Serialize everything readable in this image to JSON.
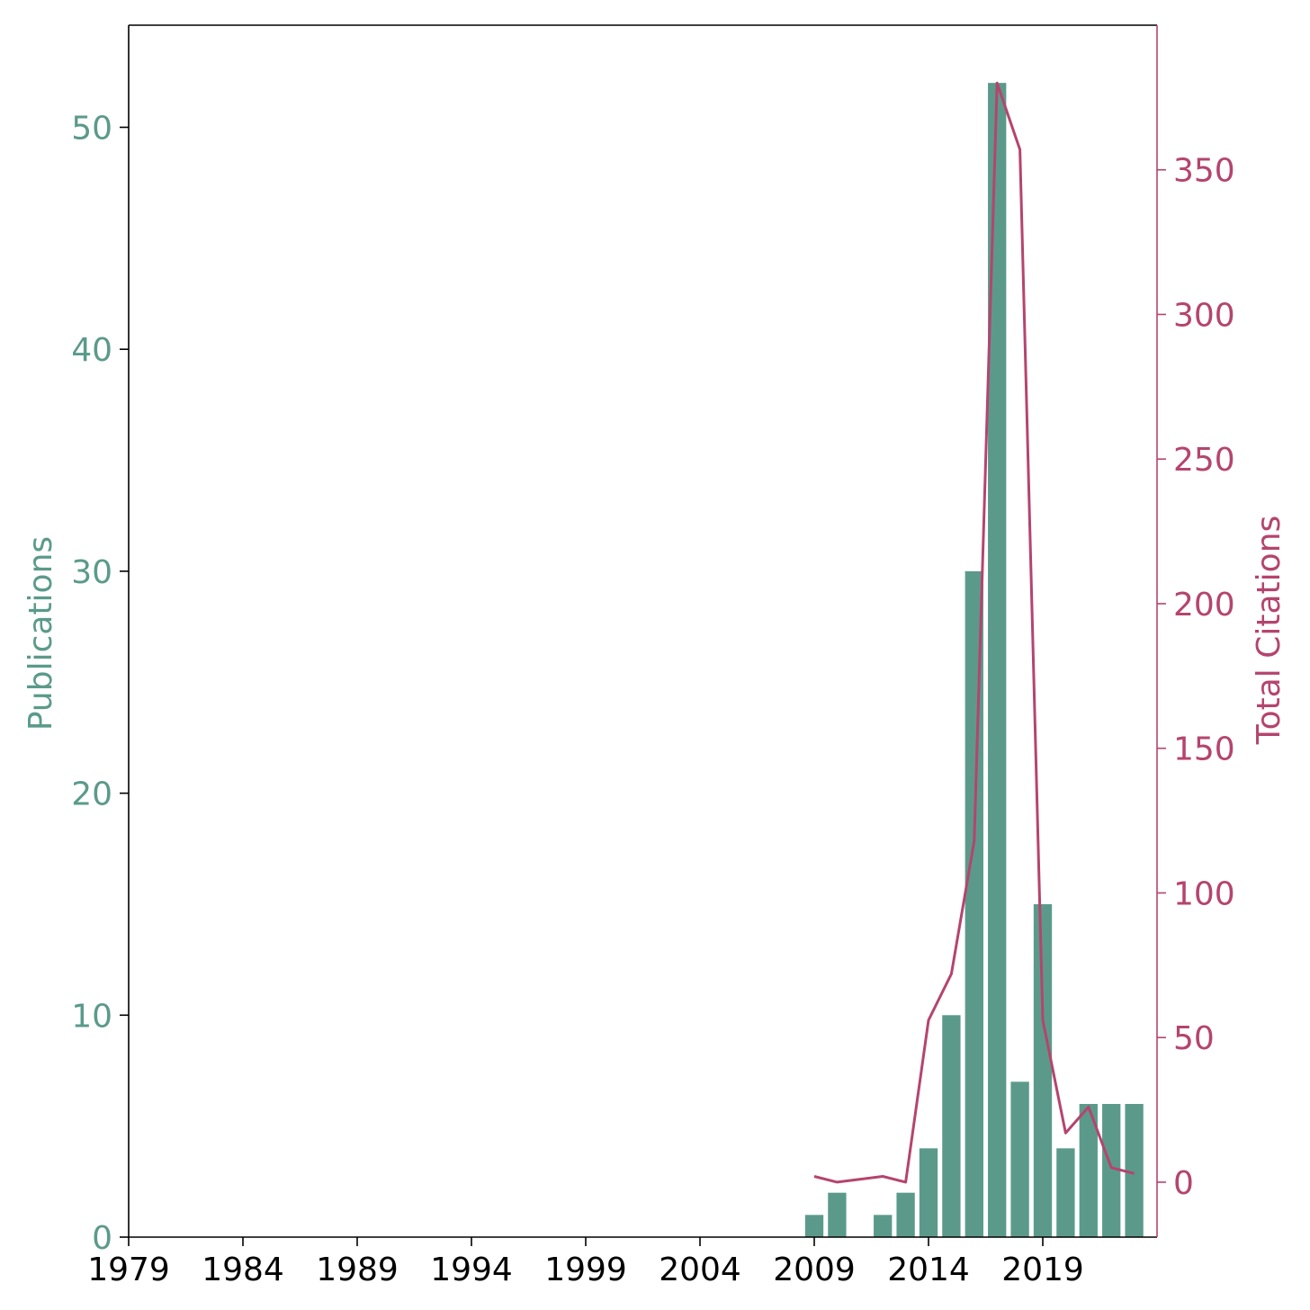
{
  "chart_data": {
    "type": "bar+line",
    "title": "",
    "xlabel": "",
    "x_ticks": [
      "1979",
      "1984",
      "1989",
      "1994",
      "1999",
      "2004",
      "2009",
      "2014",
      "2019"
    ],
    "xlim": [
      1979,
      2024
    ],
    "colors": {
      "publications": "#5b9a8b",
      "citations": "#b5446e",
      "axis": "#000000"
    },
    "series": [
      {
        "name": "Publications",
        "type": "bar",
        "axis": "left",
        "x": [
          2009,
          2010,
          2012,
          2013,
          2014,
          2015,
          2016,
          2017,
          2018,
          2019,
          2020,
          2021,
          2022,
          2023
        ],
        "values": [
          1,
          2,
          1,
          2,
          4,
          10,
          30,
          52,
          7,
          15,
          4,
          6,
          6,
          6
        ]
      },
      {
        "name": "Total Citations",
        "type": "line",
        "axis": "right",
        "x": [
          2009,
          2010,
          2012,
          2013,
          2014,
          2015,
          2016,
          2017,
          2018,
          2019,
          2020,
          2021,
          2022,
          2023
        ],
        "values": [
          2,
          0,
          2,
          0,
          56,
          72,
          118,
          380,
          357,
          56,
          17,
          26,
          5,
          3
        ]
      }
    ],
    "left_axis": {
      "label": "Publications",
      "ylim": [
        0,
        54.6
      ],
      "ticks": [
        "0",
        "10",
        "20",
        "30",
        "40",
        "50"
      ]
    },
    "right_axis": {
      "label": "Total Citations",
      "ylim": [
        -19,
        400
      ],
      "ticks": [
        "0",
        "50",
        "100",
        "150",
        "200",
        "250",
        "300",
        "350"
      ]
    }
  }
}
